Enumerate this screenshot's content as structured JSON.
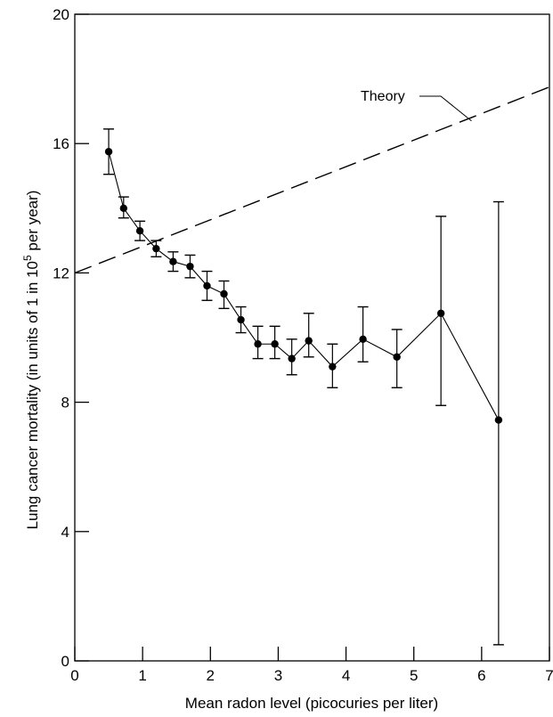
{
  "chart_data": {
    "type": "line",
    "xlabel": "Mean radon level (picocuries per liter)",
    "ylabel": {
      "prefix": "Lung cancer mortality (in units of 1 in 10",
      "superscript": "5",
      "suffix": " per year)"
    },
    "xlim": [
      0,
      7
    ],
    "ylim": [
      0,
      20
    ],
    "xticks": [
      "0",
      "1",
      "2",
      "3",
      "4",
      "5",
      "6",
      "7"
    ],
    "yticks": [
      "0",
      "4",
      "8",
      "12",
      "16",
      "20"
    ],
    "grid": false,
    "series": [
      {
        "style": "markers-with-error-bars",
        "points": [
          {
            "x": 0.5,
            "y": 15.75,
            "low": 15.05,
            "high": 16.45
          },
          {
            "x": 0.72,
            "y": 14.0,
            "low": 13.7,
            "high": 14.35
          },
          {
            "x": 0.96,
            "y": 13.3,
            "low": 13.0,
            "high": 13.6
          },
          {
            "x": 1.2,
            "y": 12.75,
            "low": 12.5,
            "high": 13.0
          },
          {
            "x": 1.45,
            "y": 12.35,
            "low": 12.05,
            "high": 12.65
          },
          {
            "x": 1.7,
            "y": 12.2,
            "low": 11.85,
            "high": 12.55
          },
          {
            "x": 1.95,
            "y": 11.6,
            "low": 11.15,
            "high": 12.05
          },
          {
            "x": 2.2,
            "y": 11.35,
            "low": 10.9,
            "high": 11.75
          },
          {
            "x": 2.45,
            "y": 10.55,
            "low": 10.15,
            "high": 10.95
          },
          {
            "x": 2.7,
            "y": 9.8,
            "low": 9.35,
            "high": 10.35
          },
          {
            "x": 2.95,
            "y": 9.8,
            "low": 9.35,
            "high": 10.35
          },
          {
            "x": 3.2,
            "y": 9.35,
            "low": 8.85,
            "high": 9.95
          },
          {
            "x": 3.45,
            "y": 9.9,
            "low": 9.4,
            "high": 10.75
          },
          {
            "x": 3.8,
            "y": 9.1,
            "low": 8.45,
            "high": 9.8
          },
          {
            "x": 4.25,
            "y": 9.95,
            "low": 9.25,
            "high": 10.95
          },
          {
            "x": 4.75,
            "y": 9.4,
            "low": 8.45,
            "high": 10.25
          },
          {
            "x": 5.4,
            "y": 10.75,
            "low": 7.9,
            "high": 13.75
          },
          {
            "x": 6.25,
            "y": 7.45,
            "low": 0.5,
            "high": 14.2
          }
        ]
      },
      {
        "style": "dashed",
        "label": "Theory",
        "x": [
          0,
          7
        ],
        "y": [
          12.0,
          17.75
        ]
      }
    ],
    "annotations": [
      {
        "text": "Theory",
        "points_to": {
          "x": 5.85,
          "y": 16.7
        }
      }
    ]
  }
}
